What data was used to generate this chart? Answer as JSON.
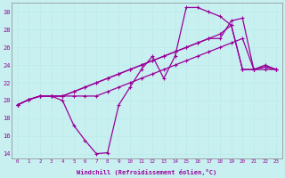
{
  "bg_color": "#c8f0f0",
  "line_color": "#990099",
  "grid_color": "#b8e8e8",
  "xlabel": "Windchill (Refroidissement éolien,°C)",
  "xlim": [
    -0.5,
    23.5
  ],
  "ylim": [
    13.5,
    31
  ],
  "xticks": [
    0,
    1,
    2,
    3,
    4,
    5,
    6,
    7,
    8,
    9,
    10,
    11,
    12,
    13,
    14,
    15,
    16,
    17,
    18,
    19,
    20,
    21,
    22,
    23
  ],
  "yticks": [
    14,
    16,
    18,
    20,
    22,
    24,
    26,
    28,
    30
  ],
  "curve_dip_x": [
    0,
    1,
    2,
    3,
    4,
    5,
    6,
    7,
    8,
    9,
    10,
    11,
    12,
    13,
    14,
    15,
    16,
    17,
    18,
    19,
    20,
    21,
    22,
    23
  ],
  "curve_dip_y": [
    19.5,
    20.1,
    20.5,
    20.5,
    20.0,
    17.2,
    15.5,
    14.0,
    14.1,
    19.5,
    21.5,
    23.5,
    25.0,
    22.5,
    25.0,
    30.5,
    30.5,
    30.0,
    29.5,
    28.5,
    23.5,
    23.5,
    24.0,
    23.5
  ],
  "line_straight1_x": [
    0,
    1,
    2,
    3,
    4,
    5,
    6,
    7,
    8,
    9,
    10,
    11,
    12,
    13,
    14,
    15,
    16,
    17,
    18,
    19,
    20,
    21,
    22,
    23
  ],
  "line_straight1_y": [
    19.5,
    20.1,
    20.5,
    20.5,
    20.5,
    21.0,
    21.5,
    22.0,
    22.5,
    23.0,
    23.5,
    24.0,
    24.5,
    25.0,
    25.5,
    26.0,
    26.5,
    27.0,
    27.0,
    29.0,
    29.3,
    23.5,
    23.8,
    23.5
  ],
  "line_straight2_x": [
    0,
    1,
    2,
    3,
    4,
    5,
    6,
    7,
    8,
    9,
    10,
    11,
    12,
    13,
    14,
    15,
    16,
    17,
    18,
    19,
    20,
    21,
    22,
    23
  ],
  "line_straight2_y": [
    19.5,
    20.1,
    20.5,
    20.5,
    20.5,
    21.0,
    21.5,
    22.0,
    22.5,
    23.0,
    23.5,
    24.0,
    24.5,
    25.0,
    25.5,
    26.0,
    26.5,
    27.0,
    27.5,
    28.5,
    23.5,
    23.5,
    23.8,
    23.5
  ],
  "line_flat_x": [
    0,
    1,
    2,
    3,
    4,
    5,
    6,
    7,
    8,
    9,
    10,
    11,
    12,
    13,
    14,
    15,
    16,
    17,
    18,
    19,
    20,
    21,
    22,
    23
  ],
  "line_flat_y": [
    19.5,
    20.1,
    20.5,
    20.5,
    20.5,
    20.5,
    20.5,
    20.5,
    21.0,
    21.5,
    22.0,
    22.5,
    23.0,
    23.5,
    24.0,
    24.5,
    25.0,
    25.5,
    26.0,
    26.5,
    27.0,
    23.5,
    23.5,
    23.5
  ]
}
